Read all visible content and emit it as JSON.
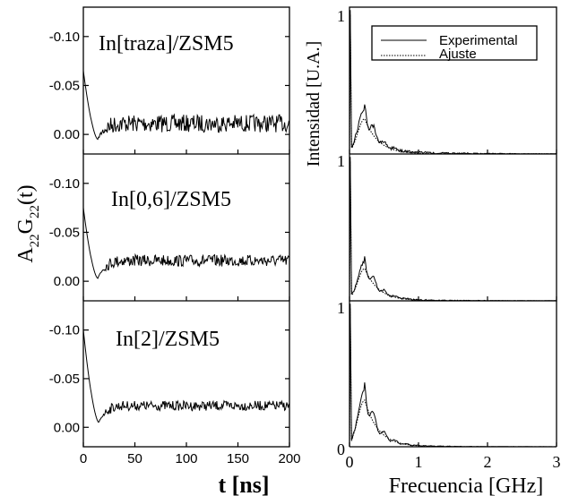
{
  "chart_data": [
    {
      "type": "line",
      "panel": "left-column",
      "xlabel": "t [ns]",
      "ylabel": "A22G22(t)",
      "ylabel_parts": {
        "base1": "A",
        "sub1": "22",
        "base2": "G",
        "sub2": "22",
        "tail": "(t)"
      },
      "xlim": [
        0,
        200
      ],
      "ylim_each_panel": [
        0.02,
        -0.13
      ],
      "y_axis_inverted": true,
      "x_ticks": [
        "0",
        "50",
        "100",
        "150",
        "200"
      ],
      "x_tick_values": [
        0,
        50,
        100,
        150,
        200
      ],
      "y_ticks": [
        "-0.10",
        "-0.05",
        "0.00"
      ],
      "y_tick_values": [
        -0.1,
        -0.05,
        0.0
      ],
      "panels": [
        {
          "label": "In[traza]/ZSM5",
          "start": -0.065,
          "min": 0.005,
          "min_t": 14,
          "plateau": -0.012,
          "noise": 0.009
        },
        {
          "label": "In[0,6]/ZSM5",
          "start": -0.075,
          "min": -0.003,
          "min_t": 14,
          "plateau": -0.022,
          "noise": 0.006
        },
        {
          "label": "In[2]/ZSM5",
          "start": -0.1,
          "min": -0.005,
          "min_t": 15,
          "plateau": -0.023,
          "noise": 0.005
        }
      ]
    },
    {
      "type": "line",
      "panel": "right-column",
      "xlabel": "Frecuencia [GHz]",
      "ylabel": "Intensidad [U.A.]",
      "xlim": [
        0,
        3
      ],
      "ylim_each_panel": [
        0,
        1
      ],
      "x_ticks": [
        "0",
        "1",
        "2",
        "3"
      ],
      "x_tick_values": [
        0,
        1,
        2,
        3
      ],
      "y_ticks_left": [
        "1",
        "1",
        "1",
        "0"
      ],
      "legend": {
        "placement": "top-right",
        "entries": [
          {
            "name": "Experimental",
            "style": "solid"
          },
          {
            "name": "Ajuste",
            "style": "dotted"
          }
        ]
      },
      "series": [
        {
          "name": "Experimental",
          "panels": [
            {
              "peak_f": 0.22,
              "peak": 0.29,
              "tail_noise": 0.035
            },
            {
              "peak_f": 0.22,
              "peak": 0.26,
              "tail_noise": 0.02
            },
            {
              "peak_f": 0.22,
              "peak": 0.38,
              "tail_noise": 0.015
            }
          ]
        },
        {
          "name": "Ajuste",
          "panels": [
            {
              "peak_f": 0.22,
              "peak": 0.24
            },
            {
              "peak_f": 0.22,
              "peak": 0.22
            },
            {
              "peak_f": 0.22,
              "peak": 0.32
            }
          ]
        }
      ]
    }
  ]
}
